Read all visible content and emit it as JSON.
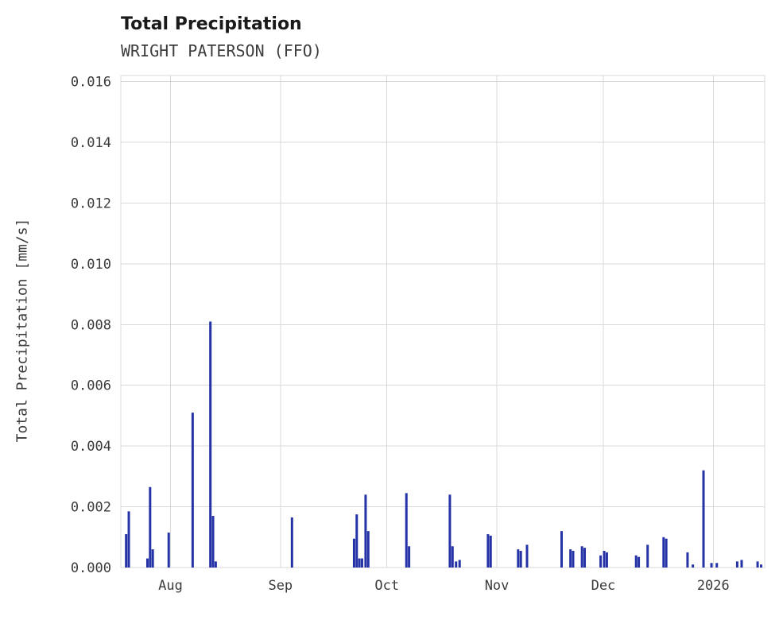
{
  "header": {
    "title": "Total Precipitation",
    "subtitle": "WRIGHT PATERSON (FFO)"
  },
  "chart_data": {
    "type": "bar",
    "title": "Total Precipitation",
    "subtitle": "WRIGHT PATERSON (FFO)",
    "xlabel": "",
    "ylabel": "Total Precipitation [mm/s]",
    "grid": true,
    "legend": "none",
    "bar_color": "#2533a6",
    "grid_color": "#d9d9d9",
    "text_color": "#3b3b3b",
    "ylim": [
      0,
      0.0162
    ],
    "yticks": [
      0.0,
      0.002,
      0.004,
      0.006,
      0.008,
      0.01,
      0.012,
      0.014,
      0.016
    ],
    "ytick_labels": [
      "0.000",
      "0.002",
      "0.004",
      "0.006",
      "0.008",
      "0.010",
      "0.012",
      "0.014",
      "0.016"
    ],
    "x_range": [
      "2025-07-18T00:00",
      "2026-01-15T12:00"
    ],
    "xticks": [
      {
        "date": "2025-08-01T00:00",
        "label": "Aug"
      },
      {
        "date": "2025-09-01T00:00",
        "label": "Sep"
      },
      {
        "date": "2025-10-01T00:00",
        "label": "Oct"
      },
      {
        "date": "2025-11-01T00:00",
        "label": "Nov"
      },
      {
        "date": "2025-12-01T00:00",
        "label": "Dec"
      },
      {
        "date": "2026-01-01T00:00",
        "label": "2026"
      }
    ],
    "points": [
      {
        "date": "2025-07-19T12:00",
        "value": 0.0011
      },
      {
        "date": "2025-07-20T06:00",
        "value": 0.00185
      },
      {
        "date": "2025-07-25T12:00",
        "value": 0.0003
      },
      {
        "date": "2025-07-26T06:00",
        "value": 0.00265
      },
      {
        "date": "2025-07-27T00:00",
        "value": 0.0006
      },
      {
        "date": "2025-07-31T12:00",
        "value": 0.00115
      },
      {
        "date": "2025-08-07T06:00",
        "value": 0.0051
      },
      {
        "date": "2025-08-12T06:00",
        "value": 0.0081
      },
      {
        "date": "2025-08-13T00:00",
        "value": 0.0017
      },
      {
        "date": "2025-08-13T18:00",
        "value": 0.0002
      },
      {
        "date": "2025-09-04T06:00",
        "value": 0.00165
      },
      {
        "date": "2025-09-21T18:00",
        "value": 0.00095
      },
      {
        "date": "2025-09-22T12:00",
        "value": 0.00175
      },
      {
        "date": "2025-09-23T06:00",
        "value": 0.0003
      },
      {
        "date": "2025-09-24T00:00",
        "value": 0.0003
      },
      {
        "date": "2025-09-25T00:00",
        "value": 0.0024
      },
      {
        "date": "2025-09-25T18:00",
        "value": 0.0012
      },
      {
        "date": "2025-10-06T12:00",
        "value": 0.00245
      },
      {
        "date": "2025-10-07T06:00",
        "value": 0.0007
      },
      {
        "date": "2025-10-18T18:00",
        "value": 0.0024
      },
      {
        "date": "2025-10-19T12:00",
        "value": 0.0007
      },
      {
        "date": "2025-10-20T12:00",
        "value": 0.0002
      },
      {
        "date": "2025-10-21T12:00",
        "value": 0.00025
      },
      {
        "date": "2025-10-29T12:00",
        "value": 0.0011
      },
      {
        "date": "2025-10-30T06:00",
        "value": 0.00105
      },
      {
        "date": "2025-11-07T00:00",
        "value": 0.0006
      },
      {
        "date": "2025-11-07T18:00",
        "value": 0.00055
      },
      {
        "date": "2025-11-09T12:00",
        "value": 0.00075
      },
      {
        "date": "2025-11-19T06:00",
        "value": 0.0012
      },
      {
        "date": "2025-11-21T18:00",
        "value": 0.0006
      },
      {
        "date": "2025-11-22T12:00",
        "value": 0.00055
      },
      {
        "date": "2025-11-25T00:00",
        "value": 0.0007
      },
      {
        "date": "2025-11-25T18:00",
        "value": 0.00065
      },
      {
        "date": "2025-11-30T06:00",
        "value": 0.0004
      },
      {
        "date": "2025-12-01T06:00",
        "value": 0.00055
      },
      {
        "date": "2025-12-02T00:00",
        "value": 0.0005
      },
      {
        "date": "2025-12-10T06:00",
        "value": 0.0004
      },
      {
        "date": "2025-12-11T00:00",
        "value": 0.00035
      },
      {
        "date": "2025-12-13T12:00",
        "value": 0.00075
      },
      {
        "date": "2025-12-18T00:00",
        "value": 0.001
      },
      {
        "date": "2025-12-18T18:00",
        "value": 0.00095
      },
      {
        "date": "2025-12-24T18:00",
        "value": 0.0005
      },
      {
        "date": "2025-12-26T06:00",
        "value": 0.0001
      },
      {
        "date": "2025-12-29T06:00",
        "value": 0.0032
      },
      {
        "date": "2025-12-31T12:00",
        "value": 0.00015
      },
      {
        "date": "2026-01-02T00:00",
        "value": 0.00015
      },
      {
        "date": "2026-01-07T18:00",
        "value": 0.0002
      },
      {
        "date": "2026-01-09T00:00",
        "value": 0.00025
      },
      {
        "date": "2026-01-13T12:00",
        "value": 0.0002
      },
      {
        "date": "2026-01-14T12:00",
        "value": 0.0001
      }
    ]
  }
}
